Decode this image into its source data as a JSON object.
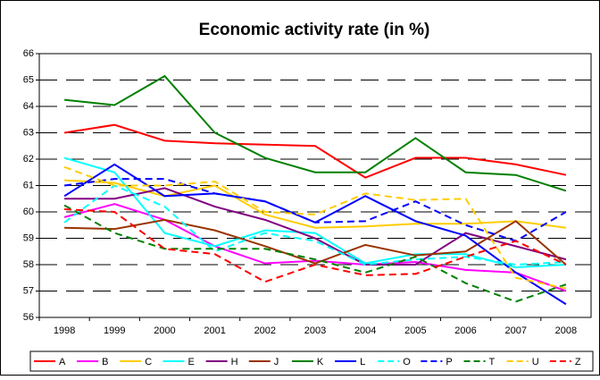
{
  "chart_data": {
    "type": "line",
    "title": "Economic activity rate (in %)",
    "categories": [
      "1998",
      "1999",
      "2000",
      "2001",
      "2002",
      "2003",
      "2004",
      "2005",
      "2006",
      "2007",
      "2008"
    ],
    "ylim": [
      56,
      66
    ],
    "yticks": [
      56,
      57,
      58,
      59,
      60,
      61,
      62,
      63,
      64,
      65,
      66
    ],
    "grid": true,
    "legend": "bottom",
    "series": [
      {
        "name": "A",
        "color": "#ff0000",
        "dashed": false,
        "values": [
          63.0,
          63.3,
          62.7,
          62.6,
          62.55,
          62.5,
          61.3,
          62.05,
          62.05,
          61.8,
          61.4
        ]
      },
      {
        "name": "B",
        "color": "#ff00ff",
        "dashed": false,
        "values": [
          59.8,
          60.3,
          59.7,
          58.7,
          58.05,
          58.15,
          58.0,
          58.1,
          57.8,
          57.7,
          57.0
        ]
      },
      {
        "name": "C",
        "color": "#ffcc00",
        "dashed": false,
        "values": [
          61.2,
          61.1,
          60.6,
          61.0,
          59.9,
          59.4,
          59.45,
          59.55,
          59.55,
          59.65,
          59.4
        ]
      },
      {
        "name": "E",
        "color": "#00ffff",
        "dashed": false,
        "values": [
          62.05,
          61.5,
          59.2,
          58.7,
          59.3,
          59.2,
          58.05,
          58.4,
          58.4,
          57.9,
          58.0
        ]
      },
      {
        "name": "H",
        "color": "#800080",
        "dashed": false,
        "values": [
          60.5,
          60.5,
          60.9,
          60.2,
          59.7,
          59.0,
          58.0,
          58.0,
          59.2,
          58.7,
          58.2
        ]
      },
      {
        "name": "J",
        "color": "#993300",
        "dashed": false,
        "values": [
          59.4,
          59.35,
          59.7,
          59.3,
          58.7,
          58.05,
          58.75,
          58.35,
          58.5,
          59.65,
          58.0
        ]
      },
      {
        "name": "K",
        "color": "#008000",
        "dashed": false,
        "values": [
          64.25,
          64.05,
          65.15,
          63.0,
          62.05,
          61.5,
          61.5,
          62.8,
          61.5,
          61.4,
          60.8
        ]
      },
      {
        "name": "L",
        "color": "#0000ff",
        "dashed": false,
        "values": [
          60.6,
          61.8,
          60.6,
          60.7,
          60.4,
          59.6,
          60.6,
          59.65,
          59.1,
          57.7,
          56.5
        ]
      },
      {
        "name": "O",
        "color": "#00ffff",
        "dashed": true,
        "values": [
          59.6,
          61.0,
          60.2,
          58.5,
          59.2,
          58.9,
          58.0,
          58.2,
          58.3,
          58.0,
          58.1
        ]
      },
      {
        "name": "P",
        "color": "#0000ff",
        "dashed": true,
        "values": [
          61.0,
          61.25,
          61.25,
          60.7,
          60.4,
          59.6,
          59.65,
          60.4,
          59.5,
          58.9,
          60.0
        ]
      },
      {
        "name": "T",
        "color": "#008000",
        "dashed": true,
        "values": [
          60.25,
          59.2,
          58.6,
          58.6,
          58.6,
          58.2,
          57.7,
          58.3,
          57.3,
          56.6,
          57.25
        ]
      },
      {
        "name": "U",
        "color": "#ffcc00",
        "dashed": true,
        "values": [
          61.7,
          61.0,
          61.0,
          61.15,
          60.0,
          59.9,
          60.7,
          60.45,
          60.5,
          57.5,
          57.1
        ]
      },
      {
        "name": "Z",
        "color": "#ff0000",
        "dashed": true,
        "values": [
          60.1,
          60.0,
          58.6,
          58.4,
          57.35,
          58.0,
          57.6,
          57.65,
          58.3,
          58.9,
          58.0
        ]
      }
    ]
  }
}
